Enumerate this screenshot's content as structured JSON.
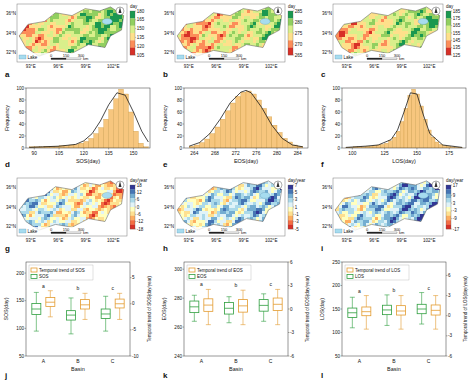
{
  "chart_data": [
    {
      "type": "map",
      "panel": "a",
      "colorbar_label": "day",
      "colorbar_range": [
        105,
        180
      ],
      "colorbar_ticks": [
        105,
        120,
        135,
        150,
        165,
        180
      ],
      "colors": [
        "#1a9850",
        "#91cf60",
        "#d9ef8b",
        "#fee08b",
        "#fc8d59",
        "#d73027"
      ],
      "lat_labels": [
        "36°N",
        "34°N",
        "32°N"
      ],
      "lon_labels": [
        "93°E",
        "96°E",
        "99°E",
        "102°E"
      ],
      "legend_label": "Lake",
      "lake_color": "#a6dcef",
      "scale_bar": [
        0,
        150,
        300
      ],
      "scale_unit": "km"
    },
    {
      "type": "map",
      "panel": "b",
      "colorbar_label": "day",
      "colorbar_range": [
        265,
        285
      ],
      "colorbar_ticks": [
        265,
        270,
        275,
        280,
        285
      ],
      "colors": [
        "#1a9850",
        "#91cf60",
        "#d9ef8b",
        "#fee08b",
        "#fc8d59",
        "#d73027"
      ],
      "lat_labels": [
        "36°N",
        "34°N",
        "32°N"
      ],
      "lon_labels": [
        "93°E",
        "96°E",
        "99°E",
        "102°E"
      ],
      "legend_label": "Lake",
      "lake_color": "#a6dcef",
      "scale_bar": [
        0,
        150,
        300
      ],
      "scale_unit": "km"
    },
    {
      "type": "map",
      "panel": "c",
      "colorbar_label": "day",
      "colorbar_range": [
        125,
        185
      ],
      "colorbar_ticks": [
        125,
        135,
        145,
        155,
        165,
        175,
        185
      ],
      "colors": [
        "#1a9850",
        "#91cf60",
        "#d9ef8b",
        "#fee08b",
        "#fc8d59",
        "#d73027"
      ],
      "lat_labels": [
        "36°N",
        "34°N",
        "32°N"
      ],
      "lon_labels": [
        "93°E",
        "96°E",
        "99°E",
        "102°E"
      ],
      "legend_label": "Lake",
      "lake_color": "#a6dcef",
      "scale_bar": [
        0,
        150,
        300
      ],
      "scale_unit": "km"
    },
    {
      "type": "histogram",
      "panel": "d",
      "x_label": "SOS(day)",
      "y_label": "Frequency",
      "color": "#f7c67e",
      "bins": [
        87,
        90,
        93,
        96,
        99,
        102,
        105,
        108,
        111,
        114,
        117,
        120,
        123,
        126,
        129,
        132,
        135,
        138,
        141,
        144,
        147,
        150,
        153,
        156,
        159
      ],
      "counts": [
        2,
        2,
        2,
        3,
        3,
        3,
        4,
        4,
        5,
        6,
        8,
        11,
        16,
        24,
        34,
        48,
        64,
        82,
        98,
        90,
        60,
        28,
        8,
        2
      ],
      "xlim": [
        85,
        160
      ],
      "xticks": [
        90,
        105,
        120,
        135,
        150
      ],
      "ylim": [
        0,
        100
      ],
      "yticks": [
        0,
        20,
        40,
        60,
        80,
        100
      ],
      "curve": {
        "color": "#1a1a1a",
        "x": [
          87,
          95,
          105,
          115,
          120,
          125,
          130,
          135,
          140,
          145,
          150,
          155,
          159
        ],
        "y": [
          1,
          2,
          3,
          6,
          12,
          24,
          45,
          72,
          92,
          88,
          60,
          28,
          10
        ]
      }
    },
    {
      "type": "histogram",
      "panel": "e",
      "x_label": "EOS(day)",
      "y_label": "Frequency",
      "color": "#f7c67e",
      "bins": [
        263,
        264,
        265,
        266,
        267,
        268,
        269,
        270,
        271,
        272,
        273,
        274,
        275,
        276,
        277,
        278,
        279,
        280,
        281,
        282,
        283,
        284,
        285
      ],
      "counts": [
        3,
        5,
        9,
        15,
        24,
        35,
        48,
        62,
        75,
        86,
        93,
        95,
        90,
        80,
        66,
        52,
        38,
        26,
        16,
        10,
        5,
        3
      ],
      "xlim": [
        262,
        286
      ],
      "xticks": [
        264,
        268,
        272,
        276,
        280,
        284
      ],
      "ylim": [
        0,
        100
      ],
      "yticks": [
        0,
        20,
        40,
        60,
        80,
        100
      ],
      "curve": {
        "color": "#1a1a1a",
        "x": [
          263,
          265,
          267,
          269,
          271,
          273,
          274,
          275,
          277,
          279,
          281,
          283,
          285
        ],
        "y": [
          3,
          9,
          24,
          48,
          76,
          93,
          96,
          92,
          68,
          38,
          16,
          5,
          2
        ]
      }
    },
    {
      "type": "histogram",
      "panel": "f",
      "x_label": "LOS(day)",
      "y_label": "Frequency",
      "color": "#f7c67e",
      "bins": [
        95,
        98,
        101,
        104,
        107,
        110,
        113,
        116,
        119,
        122,
        125,
        128,
        131,
        134,
        137,
        140,
        143,
        146,
        149,
        152,
        155,
        158,
        161,
        164,
        167,
        170,
        173,
        176,
        179,
        182,
        185
      ],
      "counts": [
        1,
        1,
        2,
        2,
        2,
        3,
        3,
        4,
        5,
        6,
        8,
        12,
        18,
        28,
        44,
        66,
        88,
        98,
        90,
        70,
        48,
        30,
        18,
        10,
        6,
        4,
        3,
        2,
        1,
        1
      ],
      "xlim": [
        92,
        188
      ],
      "xticks": [
        100,
        125,
        150,
        175
      ],
      "ylim": [
        0,
        100
      ],
      "yticks": [
        0,
        20,
        40,
        60,
        80,
        100
      ],
      "curve": {
        "color": "#1a1a1a",
        "x": [
          95,
          110,
          120,
          130,
          135,
          140,
          145,
          150,
          155,
          160,
          170,
          185
        ],
        "y": [
          1,
          3,
          5,
          14,
          30,
          60,
          92,
          90,
          55,
          24,
          5,
          1
        ]
      }
    },
    {
      "type": "map",
      "panel": "g",
      "colorbar_label": "day/year",
      "colorbar_range": [
        -18,
        18
      ],
      "colorbar_ticks": [
        -18,
        -12,
        -6,
        0,
        6,
        12,
        18
      ],
      "colors": [
        "#313695",
        "#4575b4",
        "#74add1",
        "#abd9e9",
        "#e0f3f8",
        "#ffffbf",
        "#fee090",
        "#fdae61",
        "#f46d43",
        "#d73027"
      ],
      "lat_labels": [
        "36°N",
        "34°N",
        "32°N"
      ],
      "lon_labels": [
        "93°E",
        "96°E",
        "99°E",
        "102°E"
      ],
      "legend_label": "Lake",
      "lake_color": "#a6dcef",
      "scale_bar": [
        0,
        150,
        300
      ],
      "scale_unit": "km"
    },
    {
      "type": "map",
      "panel": "h",
      "colorbar_label": "day/year",
      "colorbar_range": [
        -5,
        7
      ],
      "colorbar_ticks": [
        -5,
        -3,
        -1,
        1,
        3,
        5,
        7
      ],
      "colors": [
        "#313695",
        "#4575b4",
        "#74add1",
        "#abd9e9",
        "#e0f3f8",
        "#ffffbf",
        "#fee090",
        "#fdae61",
        "#f46d43",
        "#d73027"
      ],
      "lat_labels": [
        "36°N",
        "34°N",
        "32°N"
      ],
      "lon_labels": [
        "93°E",
        "96°E",
        "99°E",
        "102°E"
      ],
      "legend_label": "Lake",
      "lake_color": "#a6dcef",
      "scale_bar": [
        0,
        150,
        300
      ],
      "scale_unit": "km"
    },
    {
      "type": "map",
      "panel": "i",
      "colorbar_label": "day/year",
      "colorbar_range": [
        -17,
        17
      ],
      "colorbar_ticks": [
        -17,
        -9,
        -3,
        3,
        9,
        17
      ],
      "colors": [
        "#313695",
        "#4575b4",
        "#74add1",
        "#abd9e9",
        "#e0f3f8",
        "#ffffbf",
        "#fee090",
        "#fdae61",
        "#f46d43",
        "#d73027"
      ],
      "lat_labels": [
        "36°N",
        "34°N",
        "32°N"
      ],
      "lon_labels": [
        "93°E",
        "96°E",
        "99°E",
        "102°E"
      ],
      "legend_label": "Lake",
      "lake_color": "#a6dcef",
      "scale_bar": [
        0,
        150,
        300
      ],
      "scale_unit": "km"
    },
    {
      "type": "box",
      "panel": "j",
      "categories": [
        "A",
        "B",
        "C"
      ],
      "x_label": "Basin",
      "y_label": "SOS(day)",
      "y2_label": "Temporal trend of SOS(day/year)",
      "ylim": [
        50,
        220
      ],
      "yticks": [
        50,
        100,
        150,
        200
      ],
      "y2lim": [
        -10,
        8
      ],
      "y2ticks": [
        -10,
        -5,
        0,
        5
      ],
      "legend": "upper left",
      "group_letters": [
        "a",
        "b",
        "c"
      ],
      "series": [
        {
          "name": "Temporal trend of SOS",
          "color": "#e39b2f",
          "axis": "y2",
          "values": [
            {
              "min": -2.5,
              "q1": -0.5,
              "median": 0.3,
              "q3": 1.2,
              "max": 2.5
            },
            {
              "min": -3,
              "q1": -1,
              "median": -0.2,
              "q3": 0.8,
              "max": 2
            },
            {
              "min": -3,
              "q1": -0.8,
              "median": 0,
              "q3": 0.9,
              "max": 2
            }
          ]
        },
        {
          "name": "SOS",
          "color": "#2e9e3e",
          "axis": "y",
          "values": [
            {
              "min": 95,
              "q1": 125,
              "median": 135,
              "q3": 145,
              "max": 165
            },
            {
              "min": 90,
              "q1": 115,
              "median": 124,
              "q3": 132,
              "max": 155
            },
            {
              "min": 95,
              "q1": 118,
              "median": 126,
              "q3": 135,
              "max": 158
            }
          ]
        }
      ]
    },
    {
      "type": "box",
      "panel": "k",
      "categories": [
        "A",
        "B",
        "C"
      ],
      "x_label": "Basin",
      "y_label": "EOS(day)",
      "y2_label": "Temporal trend of EOS(day/year)",
      "ylim": [
        240,
        305
      ],
      "yticks": [
        240,
        260,
        280,
        300
      ],
      "y2lim": [
        -6,
        6
      ],
      "y2ticks": [
        -6,
        -3,
        0,
        3,
        6
      ],
      "legend": "upper left",
      "group_letters": [
        "a",
        "b",
        "c"
      ],
      "series": [
        {
          "name": "Temporal trend of EOS",
          "color": "#e39b2f",
          "axis": "y2",
          "values": [
            {
              "min": -2,
              "q1": -0.3,
              "median": 0.5,
              "q3": 1.3,
              "max": 2.5
            },
            {
              "min": -2,
              "q1": -0.4,
              "median": 0.4,
              "q3": 1.2,
              "max": 2.4
            },
            {
              "min": -2,
              "q1": -0.2,
              "median": 0.6,
              "q3": 1.4,
              "max": 2.5
            }
          ]
        },
        {
          "name": "EOS",
          "color": "#2e9e3e",
          "axis": "y",
          "values": [
            {
              "min": 264,
              "q1": 270,
              "median": 274,
              "q3": 278,
              "max": 282
            },
            {
              "min": 263,
              "q1": 269,
              "median": 273,
              "q3": 277,
              "max": 281
            },
            {
              "min": 264,
              "q1": 271,
              "median": 275,
              "q3": 279,
              "max": 283
            }
          ]
        }
      ]
    },
    {
      "type": "box",
      "panel": "l",
      "categories": [
        "A",
        "B",
        "C"
      ],
      "x_label": "Basin",
      "y_label": "LOS(day)",
      "y2_label": "Temporal trend of LOS(day/year)",
      "ylim": [
        50,
        250
      ],
      "yticks": [
        50,
        100,
        150,
        200,
        250
      ],
      "y2lim": [
        -6,
        8
      ],
      "y2ticks": [
        -6,
        -3,
        0,
        3,
        6
      ],
      "legend": "upper left",
      "group_letters": [
        "a",
        "b",
        "c"
      ],
      "series": [
        {
          "name": "Temporal trend of LOS",
          "color": "#e39b2f",
          "axis": "y2",
          "values": [
            {
              "min": -2,
              "q1": 0,
              "median": 0.6,
              "q3": 1.3,
              "max": 3
            },
            {
              "min": -2,
              "q1": 0.1,
              "median": 0.7,
              "q3": 1.5,
              "max": 3
            },
            {
              "min": -2,
              "q1": 0.1,
              "median": 0.8,
              "q3": 1.6,
              "max": 3
            }
          ]
        },
        {
          "name": "LOS",
          "color": "#2e9e3e",
          "axis": "y",
          "values": [
            {
              "min": 110,
              "q1": 132,
              "median": 142,
              "q3": 152,
              "max": 175
            },
            {
              "min": 115,
              "q1": 138,
              "median": 148,
              "q3": 158,
              "max": 180
            },
            {
              "min": 118,
              "q1": 140,
              "median": 150,
              "q3": 160,
              "max": 185
            }
          ]
        }
      ]
    }
  ]
}
